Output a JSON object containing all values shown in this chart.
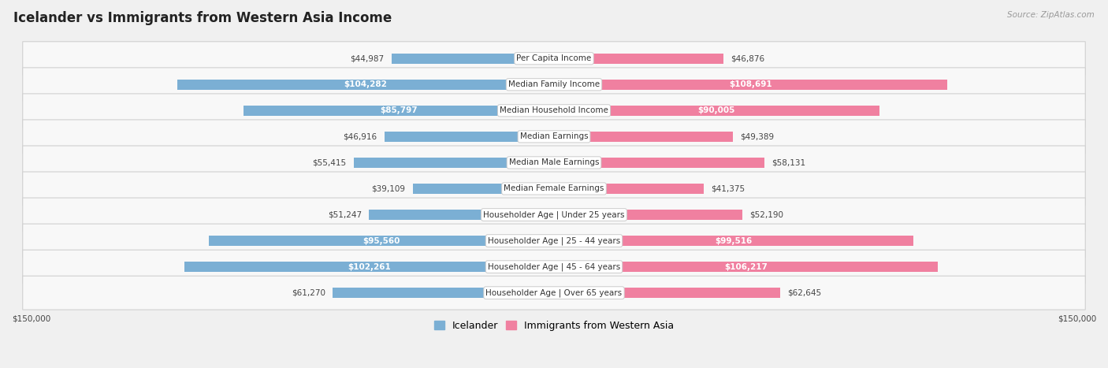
{
  "title": "Icelander vs Immigrants from Western Asia Income",
  "source": "Source: ZipAtlas.com",
  "categories": [
    "Per Capita Income",
    "Median Family Income",
    "Median Household Income",
    "Median Earnings",
    "Median Male Earnings",
    "Median Female Earnings",
    "Householder Age | Under 25 years",
    "Householder Age | 25 - 44 years",
    "Householder Age | 45 - 64 years",
    "Householder Age | Over 65 years"
  ],
  "icelander_values": [
    44987,
    104282,
    85797,
    46916,
    55415,
    39109,
    51247,
    95560,
    102261,
    61270
  ],
  "immigrant_values": [
    46876,
    108691,
    90005,
    49389,
    58131,
    41375,
    52190,
    99516,
    106217,
    62645
  ],
  "icelander_color": "#7bafd4",
  "immigrant_color": "#f080a0",
  "icelander_label_color": "#5a8ab0",
  "immigrant_label_color": "#e07090",
  "max_value": 150000,
  "bg_color": "#f0f0f0",
  "row_bg": "#f8f8f8",
  "title_fontsize": 12,
  "label_fontsize": 7.5,
  "value_fontsize": 7.5,
  "legend_fontsize": 9,
  "text_threshold": 75000
}
